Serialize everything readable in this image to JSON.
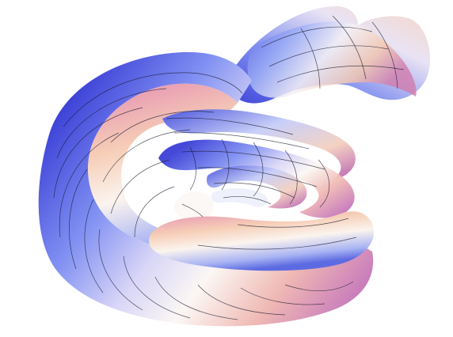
{
  "image": {
    "kind": "3D rendered mathematical surface",
    "colors": {
      "background": "#ffffff",
      "blue_deep": "#3b3fd6",
      "blue": "#6f86f2",
      "lavender": "#c8c6f5",
      "white": "#fbf7f4",
      "peach": "#f2c7b0",
      "pink": "#e48aa6",
      "magenta": "#b45fb8",
      "mesh": "#1a1a2e"
    }
  }
}
